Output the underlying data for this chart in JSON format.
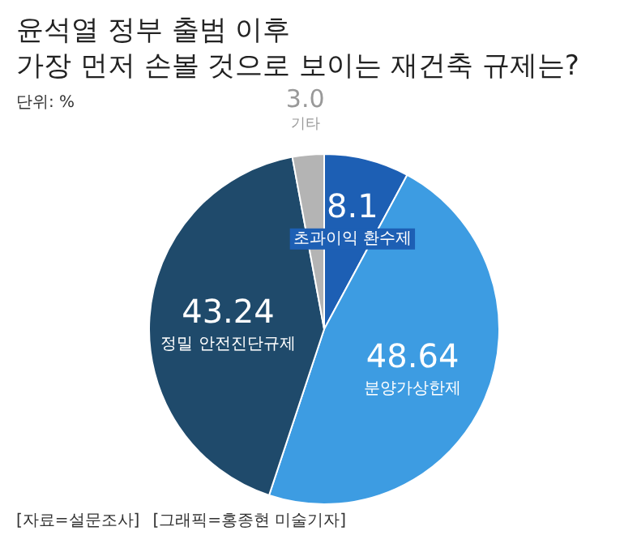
{
  "chart_data": {
    "type": "pie",
    "title": "윤석열 정부 출범 이후\n가장 먼저 손볼 것으로 보이는 재건축 규제는?",
    "subtitle": "단위: %",
    "categories": [
      "초과이익 환수제",
      "분양가상한제",
      "정밀 안전진단규제",
      "기타"
    ],
    "values": [
      8.1,
      48.64,
      43.24,
      3.0
    ],
    "value_labels": [
      "8.1",
      "48.64",
      "43.24",
      "3.0"
    ],
    "colors": [
      "#1d5fb4",
      "#3d9ce2",
      "#1f4a6b",
      "#b4b4b4"
    ],
    "annotations": [
      "[자료=설문조사]",
      "[그래픽=홍종현 미술기자]"
    ]
  }
}
